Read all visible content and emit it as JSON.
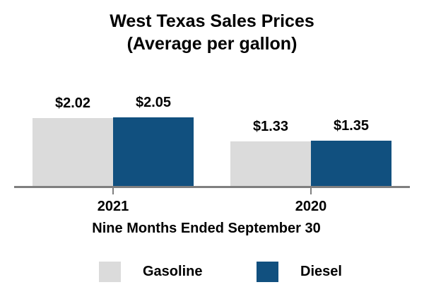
{
  "title": {
    "line1": "West Texas Sales Prices",
    "line2": "(Average per gallon)"
  },
  "chart_data": {
    "type": "bar",
    "title": "West Texas Sales Prices (Average per gallon)",
    "categories": [
      "2021",
      "2020"
    ],
    "series": [
      {
        "name": "Gasoline",
        "color": "#DBDBDB",
        "values": [
          2.02,
          1.33
        ],
        "labels": [
          "$2.02",
          "$1.33"
        ]
      },
      {
        "name": "Diesel",
        "color": "#11507F",
        "values": [
          2.05,
          1.35
        ],
        "labels": [
          "$2.05",
          "$1.35"
        ]
      }
    ],
    "xlabel": "Nine Months Ended September 30",
    "ylabel": "",
    "ylim": [
      0,
      2.2
    ],
    "grid": false,
    "data_labels": true,
    "legend_position": "bottom",
    "axis_color": "#7f7f7f",
    "text_color": "#000000"
  }
}
